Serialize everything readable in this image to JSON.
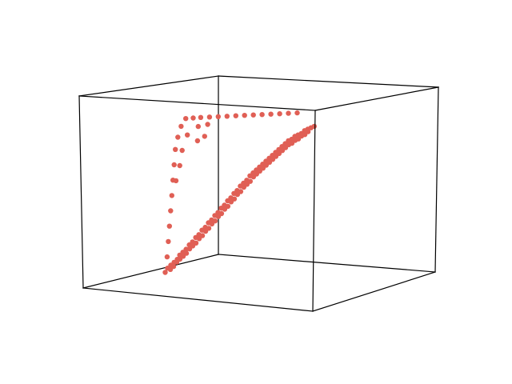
{
  "chart_data": {
    "type": "scatter3d",
    "title": "",
    "xlabel": "",
    "ylabel": "",
    "zlabel": "",
    "axes_visible": false,
    "grid": false,
    "legend": "none",
    "box": "wireframe",
    "marker_color": "#e05f55",
    "series": [
      {
        "points": [
          [
            0.0,
            0.0,
            0.0
          ],
          [
            0.02,
            0.0,
            0.03
          ],
          [
            0.04,
            0.01,
            0.05
          ],
          [
            0.06,
            0.02,
            0.07
          ],
          [
            0.08,
            0.03,
            0.09
          ],
          [
            0.1,
            0.03,
            0.12
          ],
          [
            0.12,
            0.04,
            0.14
          ],
          [
            0.14,
            0.05,
            0.16
          ],
          [
            0.16,
            0.06,
            0.19
          ],
          [
            0.18,
            0.07,
            0.21
          ],
          [
            0.2,
            0.08,
            0.24
          ],
          [
            0.22,
            0.09,
            0.26
          ],
          [
            0.24,
            0.1,
            0.29
          ],
          [
            0.26,
            0.11,
            0.31
          ],
          [
            0.28,
            0.12,
            0.34
          ],
          [
            0.3,
            0.13,
            0.36
          ],
          [
            0.32,
            0.14,
            0.39
          ],
          [
            0.34,
            0.15,
            0.41
          ],
          [
            0.36,
            0.16,
            0.44
          ],
          [
            0.38,
            0.17,
            0.46
          ],
          [
            0.4,
            0.18,
            0.49
          ],
          [
            0.42,
            0.19,
            0.51
          ],
          [
            0.44,
            0.2,
            0.54
          ],
          [
            0.46,
            0.21,
            0.56
          ],
          [
            0.48,
            0.22,
            0.59
          ],
          [
            0.5,
            0.23,
            0.61
          ],
          [
            0.52,
            0.24,
            0.63
          ],
          [
            0.54,
            0.25,
            0.66
          ],
          [
            0.56,
            0.26,
            0.68
          ],
          [
            0.58,
            0.27,
            0.7
          ],
          [
            0.6,
            0.28,
            0.72
          ],
          [
            0.62,
            0.29,
            0.74
          ],
          [
            0.64,
            0.3,
            0.76
          ],
          [
            0.66,
            0.31,
            0.78
          ],
          [
            0.68,
            0.32,
            0.8
          ],
          [
            0.7,
            0.33,
            0.82
          ],
          [
            0.72,
            0.34,
            0.84
          ],
          [
            0.74,
            0.35,
            0.86
          ],
          [
            0.76,
            0.36,
            0.88
          ],
          [
            0.78,
            0.37,
            0.9
          ],
          [
            0.8,
            0.38,
            0.91
          ],
          [
            0.82,
            0.39,
            0.93
          ],
          [
            0.84,
            0.4,
            0.94
          ],
          [
            0.86,
            0.41,
            0.95
          ],
          [
            0.88,
            0.42,
            0.97
          ],
          [
            0.9,
            0.43,
            0.98
          ],
          [
            0.92,
            0.44,
            0.99
          ],
          [
            0.94,
            0.45,
            1.0
          ],
          [
            0.03,
            0.02,
            0.02
          ],
          [
            0.05,
            0.03,
            0.04
          ],
          [
            0.07,
            0.04,
            0.07
          ],
          [
            0.09,
            0.05,
            0.09
          ],
          [
            0.11,
            0.06,
            0.11
          ],
          [
            0.13,
            0.07,
            0.13
          ],
          [
            0.15,
            0.08,
            0.16
          ],
          [
            0.17,
            0.09,
            0.18
          ],
          [
            0.19,
            0.1,
            0.2
          ],
          [
            0.21,
            0.11,
            0.23
          ],
          [
            0.23,
            0.12,
            0.25
          ],
          [
            0.25,
            0.13,
            0.28
          ],
          [
            0.27,
            0.14,
            0.3
          ],
          [
            0.29,
            0.15,
            0.33
          ],
          [
            0.31,
            0.16,
            0.35
          ],
          [
            0.33,
            0.17,
            0.38
          ],
          [
            0.35,
            0.18,
            0.4
          ],
          [
            0.37,
            0.19,
            0.43
          ],
          [
            0.39,
            0.2,
            0.45
          ],
          [
            0.41,
            0.21,
            0.48
          ],
          [
            0.43,
            0.22,
            0.5
          ],
          [
            0.45,
            0.23,
            0.53
          ],
          [
            0.47,
            0.24,
            0.55
          ],
          [
            0.49,
            0.25,
            0.58
          ],
          [
            0.51,
            0.26,
            0.6
          ],
          [
            0.53,
            0.27,
            0.62
          ],
          [
            0.55,
            0.28,
            0.65
          ],
          [
            0.57,
            0.29,
            0.67
          ],
          [
            0.59,
            0.3,
            0.69
          ],
          [
            0.61,
            0.31,
            0.71
          ],
          [
            0.63,
            0.32,
            0.73
          ],
          [
            0.65,
            0.33,
            0.75
          ],
          [
            0.67,
            0.34,
            0.77
          ],
          [
            0.69,
            0.35,
            0.79
          ],
          [
            0.71,
            0.36,
            0.81
          ],
          [
            0.73,
            0.37,
            0.83
          ],
          [
            0.75,
            0.38,
            0.85
          ],
          [
            0.77,
            0.39,
            0.87
          ],
          [
            0.79,
            0.4,
            0.88
          ],
          [
            0.81,
            0.41,
            0.9
          ],
          [
            0.83,
            0.42,
            0.91
          ],
          [
            0.85,
            0.43,
            0.93
          ],
          [
            0.87,
            0.44,
            0.94
          ],
          [
            0.89,
            0.45,
            0.96
          ],
          [
            0.0,
            0.03,
            0.1
          ],
          [
            0.0,
            0.05,
            0.2
          ],
          [
            0.0,
            0.07,
            0.3
          ],
          [
            0.0,
            0.09,
            0.4
          ],
          [
            0.0,
            0.11,
            0.5
          ],
          [
            0.0,
            0.13,
            0.6
          ],
          [
            0.0,
            0.15,
            0.7
          ],
          [
            0.0,
            0.17,
            0.8
          ],
          [
            0.01,
            0.19,
            0.88
          ],
          [
            0.02,
            0.22,
            0.95
          ],
          [
            0.04,
            0.25,
            1.0
          ],
          [
            0.07,
            0.3,
            1.0
          ],
          [
            0.1,
            0.35,
            1.0
          ],
          [
            0.14,
            0.4,
            1.0
          ],
          [
            0.18,
            0.45,
            1.0
          ],
          [
            0.22,
            0.5,
            1.0
          ],
          [
            0.26,
            0.55,
            1.0
          ],
          [
            0.3,
            0.6,
            1.0
          ],
          [
            0.34,
            0.65,
            1.0
          ],
          [
            0.38,
            0.7,
            1.0
          ],
          [
            0.42,
            0.75,
            1.0
          ],
          [
            0.46,
            0.8,
            1.0
          ],
          [
            0.5,
            0.85,
            1.0
          ],
          [
            0.54,
            0.9,
            1.0
          ],
          [
            0.03,
            0.12,
            0.6
          ],
          [
            0.05,
            0.14,
            0.7
          ],
          [
            0.06,
            0.16,
            0.8
          ],
          [
            0.08,
            0.2,
            0.9
          ],
          [
            0.12,
            0.28,
            0.95
          ],
          [
            0.16,
            0.34,
            0.96
          ],
          [
            0.1,
            0.3,
            0.85
          ],
          [
            0.14,
            0.33,
            0.88
          ]
        ]
      }
    ]
  }
}
